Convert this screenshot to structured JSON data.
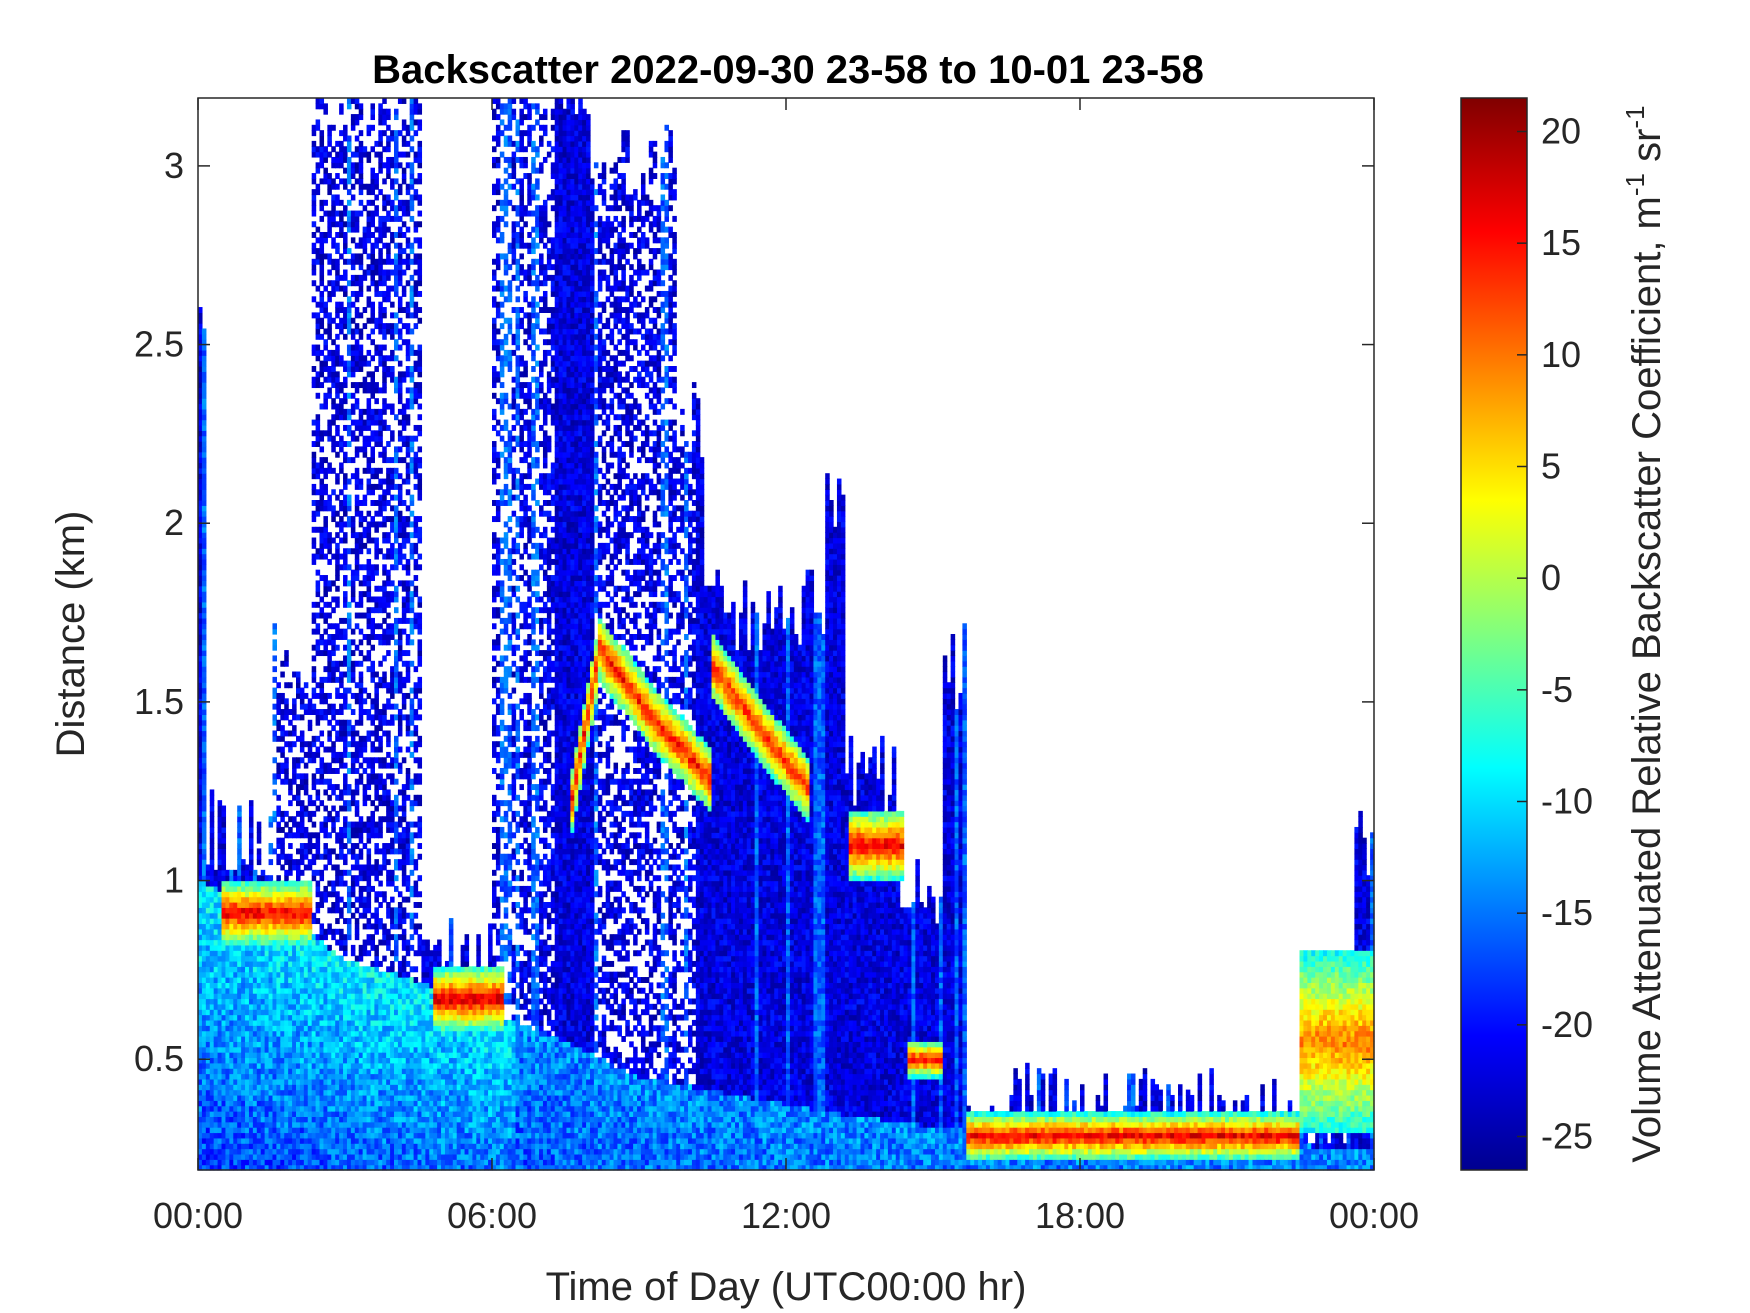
{
  "chart_data": {
    "type": "heatmap",
    "title": "Backscatter 2022-09-30 23-58 to 10-01 23-58",
    "xlabel": "Time of Day (UTC00:00 hr)",
    "ylabel": "Distance (km)",
    "x_ticks": [
      "00:00",
      "06:00",
      "12:00",
      "18:00",
      "00:00"
    ],
    "y_ticks": [
      "0.5",
      "1",
      "1.5",
      "2",
      "2.5",
      "3"
    ],
    "y_tick_values": [
      0.5,
      1,
      1.5,
      2,
      2.5,
      3
    ],
    "xlim_hours": [
      0,
      24
    ],
    "ylim_km": [
      0.19,
      3.19
    ],
    "colorbar": {
      "label": "Volume Attenuated Relative Backscatter Coefficient, m",
      "label_sup1": "-1",
      "label_mid": " sr",
      "label_sup2": "-1",
      "ticks": [
        "20",
        "15",
        "10",
        "5",
        "0",
        "-5",
        "-10",
        "-15",
        "-20",
        "-25"
      ],
      "tick_values": [
        20,
        15,
        10,
        5,
        0,
        -5,
        -10,
        -15,
        -20,
        -25
      ],
      "range": [
        -26.5,
        21.5
      ],
      "colormap": "jet"
    },
    "features": [
      {
        "desc": "surface layer top",
        "points_h_km": [
          [
            0,
            1.0
          ],
          [
            2,
            0.88
          ],
          [
            3,
            0.78
          ],
          [
            4.5,
            0.72
          ],
          [
            6.2,
            0.62
          ],
          [
            7.5,
            0.55
          ],
          [
            9,
            0.45
          ],
          [
            11,
            0.4
          ],
          [
            13,
            0.35
          ],
          [
            15.7,
            0.3
          ],
          [
            24,
            0.25
          ]
        ]
      },
      {
        "desc": "cloud layer 1",
        "hours": [
          0.5,
          2.3
        ],
        "km": [
          0.82,
          1.0
        ],
        "peak": 17
      },
      {
        "desc": "cloud layer 2",
        "hours": [
          4.8,
          6.2
        ],
        "km": [
          0.58,
          0.76
        ],
        "peak": 18
      },
      {
        "desc": "rising aerosol layer",
        "points_h_km": [
          [
            7.6,
            1.2
          ],
          [
            8.2,
            1.65
          ],
          [
            9.3,
            1.45
          ],
          [
            10.5,
            1.28
          ]
        ],
        "peak": 15
      },
      {
        "desc": "upper layer",
        "points_h_km": [
          [
            10.5,
            1.6
          ],
          [
            11.6,
            1.4
          ],
          [
            12.5,
            1.25
          ]
        ],
        "peak": 14
      },
      {
        "desc": "cloud layer 3",
        "hours": [
          13.3,
          14.4
        ],
        "km": [
          1.0,
          1.2
        ],
        "peak": 17
      },
      {
        "desc": "cloud layer 4",
        "hours": [
          14.5,
          15.2
        ],
        "km": [
          0.45,
          0.55
        ],
        "peak": 16
      },
      {
        "desc": "boundary layer top",
        "hours": [
          15.7,
          22.5
        ],
        "km": [
          0.22,
          0.35
        ],
        "peak": 17
      },
      {
        "desc": "growing layer",
        "hours": [
          22.5,
          24
        ],
        "km": [
          0.3,
          0.8
        ],
        "peak": 10
      }
    ]
  }
}
